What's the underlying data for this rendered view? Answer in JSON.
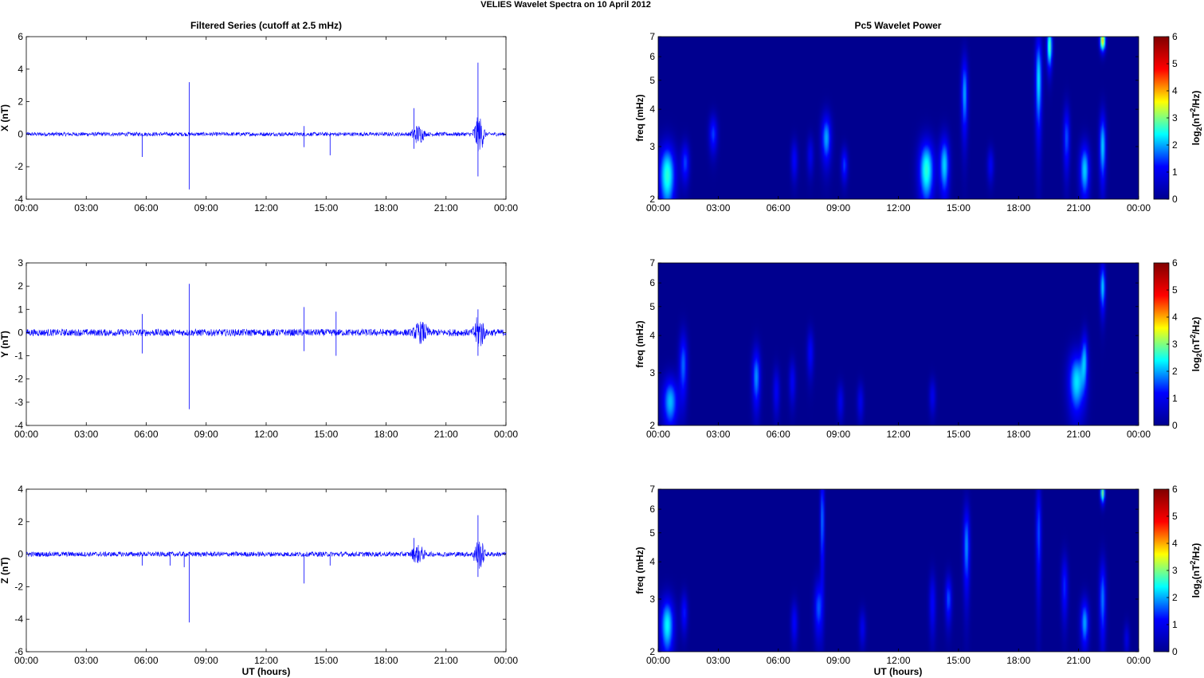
{
  "figure": {
    "title": "VELIES Wavelet Spectra on 10 April     2012",
    "left_title": "Filtered Series (cutoff at 2.5 mHz)",
    "right_title": "Pc5 Wavelet Power",
    "xlabel": "UT (hours)"
  },
  "colors": {
    "trace": "#0000ff",
    "cmap": [
      "#00008f",
      "#0000ff",
      "#00ffff",
      "#ffff00",
      "#ff0000",
      "#800000"
    ]
  },
  "chart_data": [
    {
      "type": "line",
      "component": "X",
      "ylabel": "X (nT)",
      "x_ticks": [
        "00:00",
        "03:00",
        "06:00",
        "09:00",
        "12:00",
        "15:00",
        "18:00",
        "21:00",
        "00:00"
      ],
      "xlim_hours": [
        0,
        24
      ],
      "ylim": [
        -4,
        6
      ],
      "y_ticks": [
        -4,
        -2,
        0,
        2,
        4,
        6
      ],
      "noise_amplitude": 0.12,
      "spikes": [
        {
          "t": 5.8,
          "y": -1.4
        },
        {
          "t": 8.15,
          "y": 3.2
        },
        {
          "t": 8.15,
          "y": -3.4
        },
        {
          "t": 13.9,
          "y": 0.5
        },
        {
          "t": 13.9,
          "y": -0.8
        },
        {
          "t": 15.2,
          "y": -1.3
        },
        {
          "t": 19.4,
          "y": 1.6
        },
        {
          "t": 19.4,
          "y": -0.9
        },
        {
          "t": 22.6,
          "y": 4.4
        },
        {
          "t": 22.6,
          "y": -2.6
        }
      ],
      "bursts": [
        {
          "t0": 19.2,
          "t1": 20.0,
          "amp": 0.5
        },
        {
          "t0": 22.3,
          "t1": 23.0,
          "amp": 1.0
        }
      ]
    },
    {
      "type": "line",
      "component": "Y",
      "ylabel": "Y (nT)",
      "x_ticks": [
        "00:00",
        "03:00",
        "06:00",
        "09:00",
        "12:00",
        "15:00",
        "18:00",
        "21:00",
        "00:00"
      ],
      "xlim_hours": [
        0,
        24
      ],
      "ylim": [
        -4,
        3
      ],
      "y_ticks": [
        -4,
        -3,
        -2,
        -1,
        0,
        1,
        2,
        3
      ],
      "noise_amplitude": 0.15,
      "spikes": [
        {
          "t": 5.8,
          "y": 0.8
        },
        {
          "t": 5.8,
          "y": -0.9
        },
        {
          "t": 8.15,
          "y": 2.1
        },
        {
          "t": 8.15,
          "y": -3.3
        },
        {
          "t": 13.9,
          "y": 1.1
        },
        {
          "t": 13.9,
          "y": -0.8
        },
        {
          "t": 15.5,
          "y": 0.9
        },
        {
          "t": 15.5,
          "y": -1.0
        },
        {
          "t": 22.6,
          "y": 1.0
        },
        {
          "t": 22.6,
          "y": -1.0
        }
      ],
      "bursts": [
        {
          "t0": 19.3,
          "t1": 20.2,
          "amp": 0.35
        },
        {
          "t0": 22.3,
          "t1": 23.0,
          "amp": 0.6
        }
      ]
    },
    {
      "type": "line",
      "component": "Z",
      "ylabel": "Z (nT)",
      "x_ticks": [
        "00:00",
        "03:00",
        "06:00",
        "09:00",
        "12:00",
        "15:00",
        "18:00",
        "21:00",
        "00:00"
      ],
      "xlim_hours": [
        0,
        24
      ],
      "ylim": [
        -6,
        4
      ],
      "y_ticks": [
        -6,
        -4,
        -2,
        0,
        2,
        4
      ],
      "noise_amplitude": 0.15,
      "spikes": [
        {
          "t": 5.8,
          "y": -0.7
        },
        {
          "t": 7.2,
          "y": -0.7
        },
        {
          "t": 7.9,
          "y": -0.8
        },
        {
          "t": 8.15,
          "y": -4.2
        },
        {
          "t": 13.9,
          "y": -1.8
        },
        {
          "t": 15.2,
          "y": -0.7
        },
        {
          "t": 19.4,
          "y": 1.0
        },
        {
          "t": 22.6,
          "y": 2.4
        },
        {
          "t": 22.6,
          "y": -1.4
        }
      ],
      "bursts": [
        {
          "t0": 19.2,
          "t1": 20.0,
          "amp": 0.45
        },
        {
          "t0": 22.3,
          "t1": 23.0,
          "amp": 0.8
        }
      ]
    },
    {
      "type": "heatmap",
      "component": "X",
      "ylabel": "freq (mHz)",
      "x_ticks": [
        "00:00",
        "03:00",
        "06:00",
        "09:00",
        "12:00",
        "15:00",
        "18:00",
        "21:00",
        "00:00"
      ],
      "xlim_hours": [
        0,
        24
      ],
      "ylim_mhz": [
        2,
        7
      ],
      "y_scale": "log",
      "y_ticks": [
        2,
        3,
        4,
        5,
        6,
        7
      ],
      "colorbar_label": "log2(nT^2/Hz)",
      "colorbar_ticks": [
        0,
        1,
        2,
        3,
        4,
        5,
        6
      ],
      "clim": [
        0,
        6
      ],
      "blobs": [
        {
          "t": 0.45,
          "f": 2.4,
          "wt": 0.3,
          "wf": 0.45,
          "v": 2.6
        },
        {
          "t": 1.35,
          "f": 2.65,
          "wt": 0.15,
          "wf": 0.3,
          "v": 1.5
        },
        {
          "t": 2.75,
          "f": 3.3,
          "wt": 0.15,
          "wf": 0.35,
          "v": 1.5
        },
        {
          "t": 6.8,
          "f": 2.7,
          "wt": 0.12,
          "wf": 0.3,
          "v": 1.2
        },
        {
          "t": 7.6,
          "f": 2.8,
          "wt": 0.12,
          "wf": 0.3,
          "v": 1.0
        },
        {
          "t": 8.4,
          "f": 3.2,
          "wt": 0.18,
          "wf": 0.45,
          "v": 2.0
        },
        {
          "t": 9.3,
          "f": 2.6,
          "wt": 0.12,
          "wf": 0.25,
          "v": 1.5
        },
        {
          "t": 13.4,
          "f": 2.5,
          "wt": 0.28,
          "wf": 0.45,
          "v": 2.6
        },
        {
          "t": 14.3,
          "f": 2.6,
          "wt": 0.18,
          "wf": 0.45,
          "v": 2.2
        },
        {
          "t": 15.3,
          "f": 4.5,
          "wt": 0.12,
          "wf": 1.0,
          "v": 2.0
        },
        {
          "t": 16.6,
          "f": 2.6,
          "wt": 0.12,
          "wf": 0.25,
          "v": 1.1
        },
        {
          "t": 19.0,
          "f": 5.0,
          "wt": 0.12,
          "wf": 1.4,
          "v": 2.3
        },
        {
          "t": 19.55,
          "f": 6.5,
          "wt": 0.1,
          "wf": 0.8,
          "v": 2.8
        },
        {
          "t": 20.4,
          "f": 3.2,
          "wt": 0.12,
          "wf": 0.6,
          "v": 1.6
        },
        {
          "t": 21.3,
          "f": 2.5,
          "wt": 0.18,
          "wf": 0.4,
          "v": 2.2
        },
        {
          "t": 22.2,
          "f": 3.0,
          "wt": 0.12,
          "wf": 0.6,
          "v": 2.2
        },
        {
          "t": 22.2,
          "f": 6.8,
          "wt": 0.1,
          "wf": 0.4,
          "v": 3.8
        }
      ]
    },
    {
      "type": "heatmap",
      "component": "Y",
      "ylabel": "freq (mHz)",
      "x_ticks": [
        "00:00",
        "03:00",
        "06:00",
        "09:00",
        "12:00",
        "15:00",
        "18:00",
        "21:00",
        "00:00"
      ],
      "xlim_hours": [
        0,
        24
      ],
      "ylim_mhz": [
        2,
        7
      ],
      "y_scale": "log",
      "y_ticks": [
        2,
        3,
        4,
        5,
        6,
        7
      ],
      "colorbar_label": "log2(nT^2/Hz)",
      "colorbar_ticks": [
        0,
        1,
        2,
        3,
        4,
        5,
        6
      ],
      "clim": [
        0,
        6
      ],
      "blobs": [
        {
          "t": 0.6,
          "f": 2.4,
          "wt": 0.28,
          "wf": 0.35,
          "v": 2.1
        },
        {
          "t": 1.25,
          "f": 3.2,
          "wt": 0.15,
          "wf": 0.6,
          "v": 1.7
        },
        {
          "t": 4.9,
          "f": 2.9,
          "wt": 0.15,
          "wf": 0.5,
          "v": 1.9
        },
        {
          "t": 5.9,
          "f": 2.6,
          "wt": 0.12,
          "wf": 0.35,
          "v": 1.1
        },
        {
          "t": 6.7,
          "f": 2.8,
          "wt": 0.12,
          "wf": 0.35,
          "v": 1.1
        },
        {
          "t": 7.6,
          "f": 3.5,
          "wt": 0.12,
          "wf": 0.45,
          "v": 1.2
        },
        {
          "t": 9.1,
          "f": 2.4,
          "wt": 0.12,
          "wf": 0.25,
          "v": 1.0
        },
        {
          "t": 10.1,
          "f": 2.4,
          "wt": 0.12,
          "wf": 0.25,
          "v": 1.0
        },
        {
          "t": 13.7,
          "f": 2.5,
          "wt": 0.12,
          "wf": 0.25,
          "v": 1.0
        },
        {
          "t": 20.9,
          "f": 2.8,
          "wt": 0.3,
          "wf": 0.5,
          "v": 2.3
        },
        {
          "t": 21.3,
          "f": 3.4,
          "wt": 0.12,
          "wf": 0.5,
          "v": 1.6
        },
        {
          "t": 22.2,
          "f": 5.8,
          "wt": 0.1,
          "wf": 0.8,
          "v": 2.2
        }
      ]
    },
    {
      "type": "heatmap",
      "component": "Z",
      "ylabel": "freq (mHz)",
      "x_ticks": [
        "00:00",
        "03:00",
        "06:00",
        "09:00",
        "12:00",
        "15:00",
        "18:00",
        "21:00",
        "00:00"
      ],
      "xlim_hours": [
        0,
        24
      ],
      "ylim_mhz": [
        2,
        7
      ],
      "y_scale": "log",
      "y_ticks": [
        2,
        3,
        4,
        5,
        6,
        7
      ],
      "colorbar_label": "log2(nT^2/Hz)",
      "colorbar_ticks": [
        0,
        1,
        2,
        3,
        4,
        5,
        6
      ],
      "clim": [
        0,
        6
      ],
      "blobs": [
        {
          "t": 0.45,
          "f": 2.45,
          "wt": 0.25,
          "wf": 0.4,
          "v": 2.4
        },
        {
          "t": 1.3,
          "f": 2.7,
          "wt": 0.12,
          "wf": 0.3,
          "v": 1.3
        },
        {
          "t": 6.8,
          "f": 2.5,
          "wt": 0.12,
          "wf": 0.3,
          "v": 1.2
        },
        {
          "t": 8.0,
          "f": 2.8,
          "wt": 0.15,
          "wf": 0.45,
          "v": 1.6
        },
        {
          "t": 8.2,
          "f": 5.5,
          "wt": 0.08,
          "wf": 1.6,
          "v": 1.8
        },
        {
          "t": 10.2,
          "f": 2.4,
          "wt": 0.12,
          "wf": 0.25,
          "v": 1.0
        },
        {
          "t": 13.7,
          "f": 2.9,
          "wt": 0.12,
          "wf": 0.5,
          "v": 1.2
        },
        {
          "t": 14.5,
          "f": 3.0,
          "wt": 0.12,
          "wf": 0.4,
          "v": 1.6
        },
        {
          "t": 15.4,
          "f": 4.5,
          "wt": 0.12,
          "wf": 1.1,
          "v": 1.9
        },
        {
          "t": 19.0,
          "f": 5.0,
          "wt": 0.1,
          "wf": 1.5,
          "v": 1.6
        },
        {
          "t": 20.3,
          "f": 3.3,
          "wt": 0.12,
          "wf": 0.6,
          "v": 1.4
        },
        {
          "t": 21.3,
          "f": 2.5,
          "wt": 0.15,
          "wf": 0.35,
          "v": 2.0
        },
        {
          "t": 22.2,
          "f": 3.0,
          "wt": 0.12,
          "wf": 0.7,
          "v": 1.8
        },
        {
          "t": 22.2,
          "f": 6.8,
          "wt": 0.08,
          "wf": 0.4,
          "v": 3.0
        },
        {
          "t": 23.4,
          "f": 2.2,
          "wt": 0.1,
          "wf": 0.2,
          "v": 0.9
        }
      ]
    }
  ]
}
